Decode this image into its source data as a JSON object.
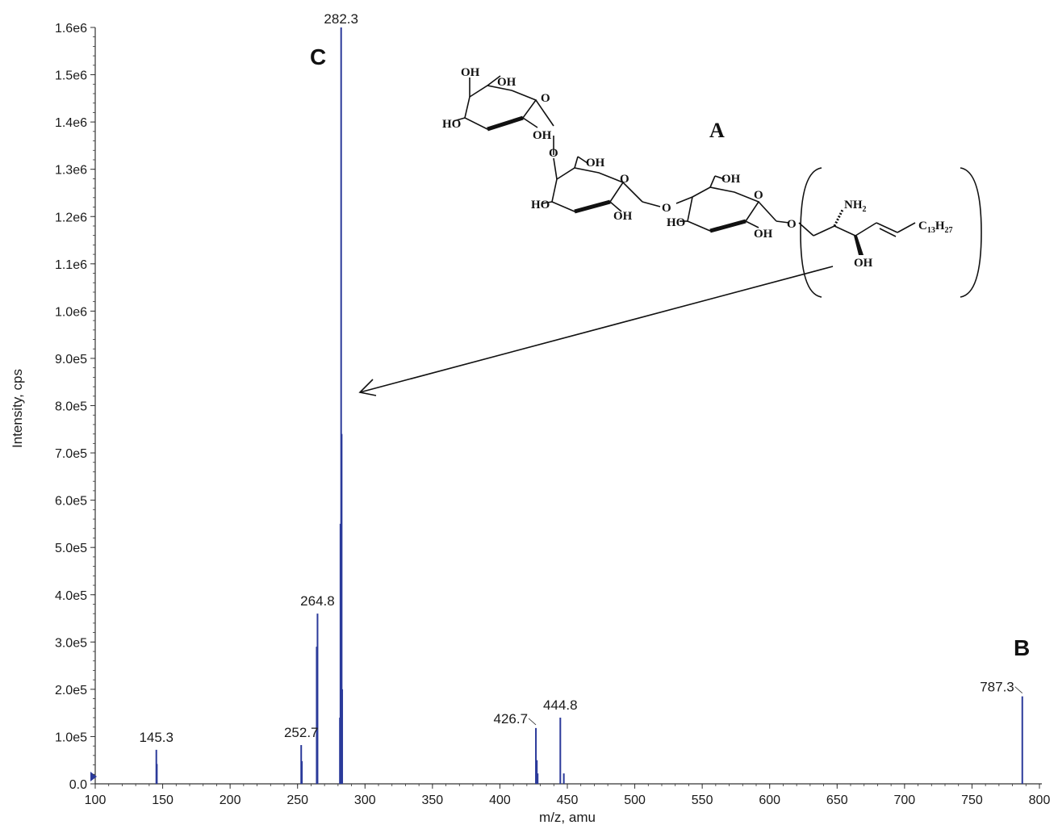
{
  "chart_data": {
    "type": "bar",
    "xlabel": "m/z, amu",
    "ylabel": "Intensity, cps",
    "xlim": [
      100,
      800
    ],
    "ylim": [
      0,
      1600000
    ],
    "x_ticks": [
      "100",
      "150",
      "200",
      "250",
      "300",
      "350",
      "400",
      "450",
      "500",
      "550",
      "600",
      "650",
      "700",
      "750",
      "800"
    ],
    "y_ticks": [
      "0.0",
      "1.0e5",
      "2.0e5",
      "3.0e5",
      "4.0e5",
      "5.0e5",
      "6.0e5",
      "7.0e5",
      "8.0e5",
      "9.0e5",
      "1.0e6",
      "1.1e6",
      "1.2e6",
      "1.3e6",
      "1.4e6",
      "1.5e6",
      "1.6e6"
    ],
    "peaks": [
      {
        "x": 145.3,
        "y": 72000
      },
      {
        "x": 145.7,
        "y": 42000
      },
      {
        "x": 252.7,
        "y": 82000
      },
      {
        "x": 253.2,
        "y": 48000
      },
      {
        "x": 264.2,
        "y": 290000
      },
      {
        "x": 264.8,
        "y": 360000
      },
      {
        "x": 281.4,
        "y": 140000
      },
      {
        "x": 281.8,
        "y": 550000
      },
      {
        "x": 282.3,
        "y": 1600000
      },
      {
        "x": 282.7,
        "y": 740000
      },
      {
        "x": 283.1,
        "y": 200000
      },
      {
        "x": 426.7,
        "y": 118000
      },
      {
        "x": 427.4,
        "y": 50000
      },
      {
        "x": 428.0,
        "y": 22000
      },
      {
        "x": 444.8,
        "y": 140000
      },
      {
        "x": 447.4,
        "y": 22000
      },
      {
        "x": 787.3,
        "y": 185000
      }
    ],
    "peak_labels": [
      {
        "text": "145.3",
        "x": 145.3,
        "y": 72000
      },
      {
        "text": "252.7",
        "x": 252.7,
        "y": 82000
      },
      {
        "text": "264.8",
        "x": 264.8,
        "y": 360000
      },
      {
        "text": "282.3",
        "x": 282.3,
        "y": 1600000
      },
      {
        "text": "426.7",
        "x": 426.7,
        "y": 118000
      },
      {
        "text": "444.8",
        "x": 444.8,
        "y": 140000
      },
      {
        "text": "787.3",
        "x": 787.3,
        "y": 185000
      }
    ],
    "color": "#2b3a9a"
  },
  "annotations": {
    "panel_a": "A",
    "panel_b": "B",
    "panel_c": "C"
  },
  "structure": {
    "oh": "OH",
    "ho": "HO",
    "o": "O",
    "nh": "NH",
    "nh_sub": "2",
    "chain_c": "C",
    "chain_c_sub": "13",
    "chain_h": "H",
    "chain_h_sub": "27"
  }
}
